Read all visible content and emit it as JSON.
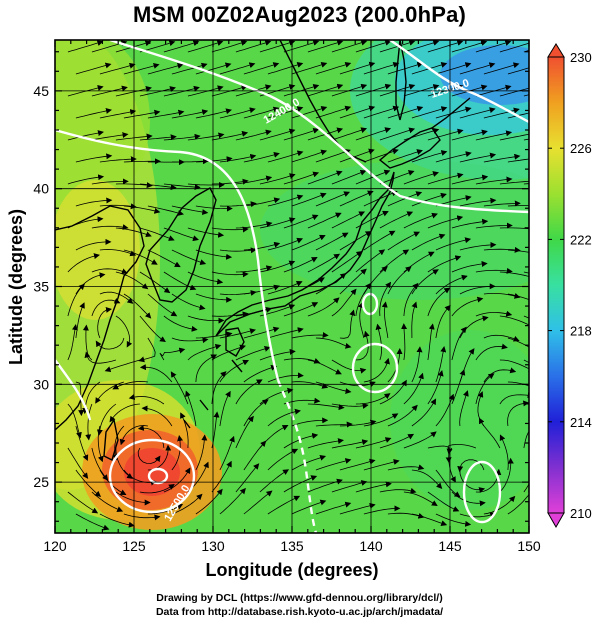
{
  "title": "MSM 00Z02Aug2023 (200.0hPa)",
  "axes": {
    "xlabel": "Longitude (degrees)",
    "ylabel": "Latitude  (degrees)",
    "x_ticks": [
      "120",
      "125",
      "130",
      "135",
      "140",
      "145",
      "150"
    ],
    "y_ticks": [
      "25",
      "30",
      "35",
      "40",
      "45"
    ],
    "xlim": [
      120,
      150
    ],
    "ylim": [
      22.4,
      47.6
    ]
  },
  "colorbar": {
    "ticks": [
      "230",
      "226",
      "222",
      "218",
      "214",
      "210"
    ],
    "range": [
      210,
      230
    ],
    "colors": [
      "#e040d8",
      "#8030d0",
      "#2020d8",
      "#2a70e8",
      "#30c0e8",
      "#38e0a0",
      "#40d848",
      "#9ce030",
      "#e8e030",
      "#f0a020",
      "#f05030"
    ]
  },
  "contours": {
    "label_low": "12300.0",
    "label_mid": "12400.0",
    "label_south": "12500.0"
  },
  "credits": {
    "line1": "Drawing by DCL (https://www.gfd-dennou.org/library/dcl/)",
    "line2": "Data from http://database.rish.kyoto-u.ac.jp/arch/jmadata/"
  }
}
